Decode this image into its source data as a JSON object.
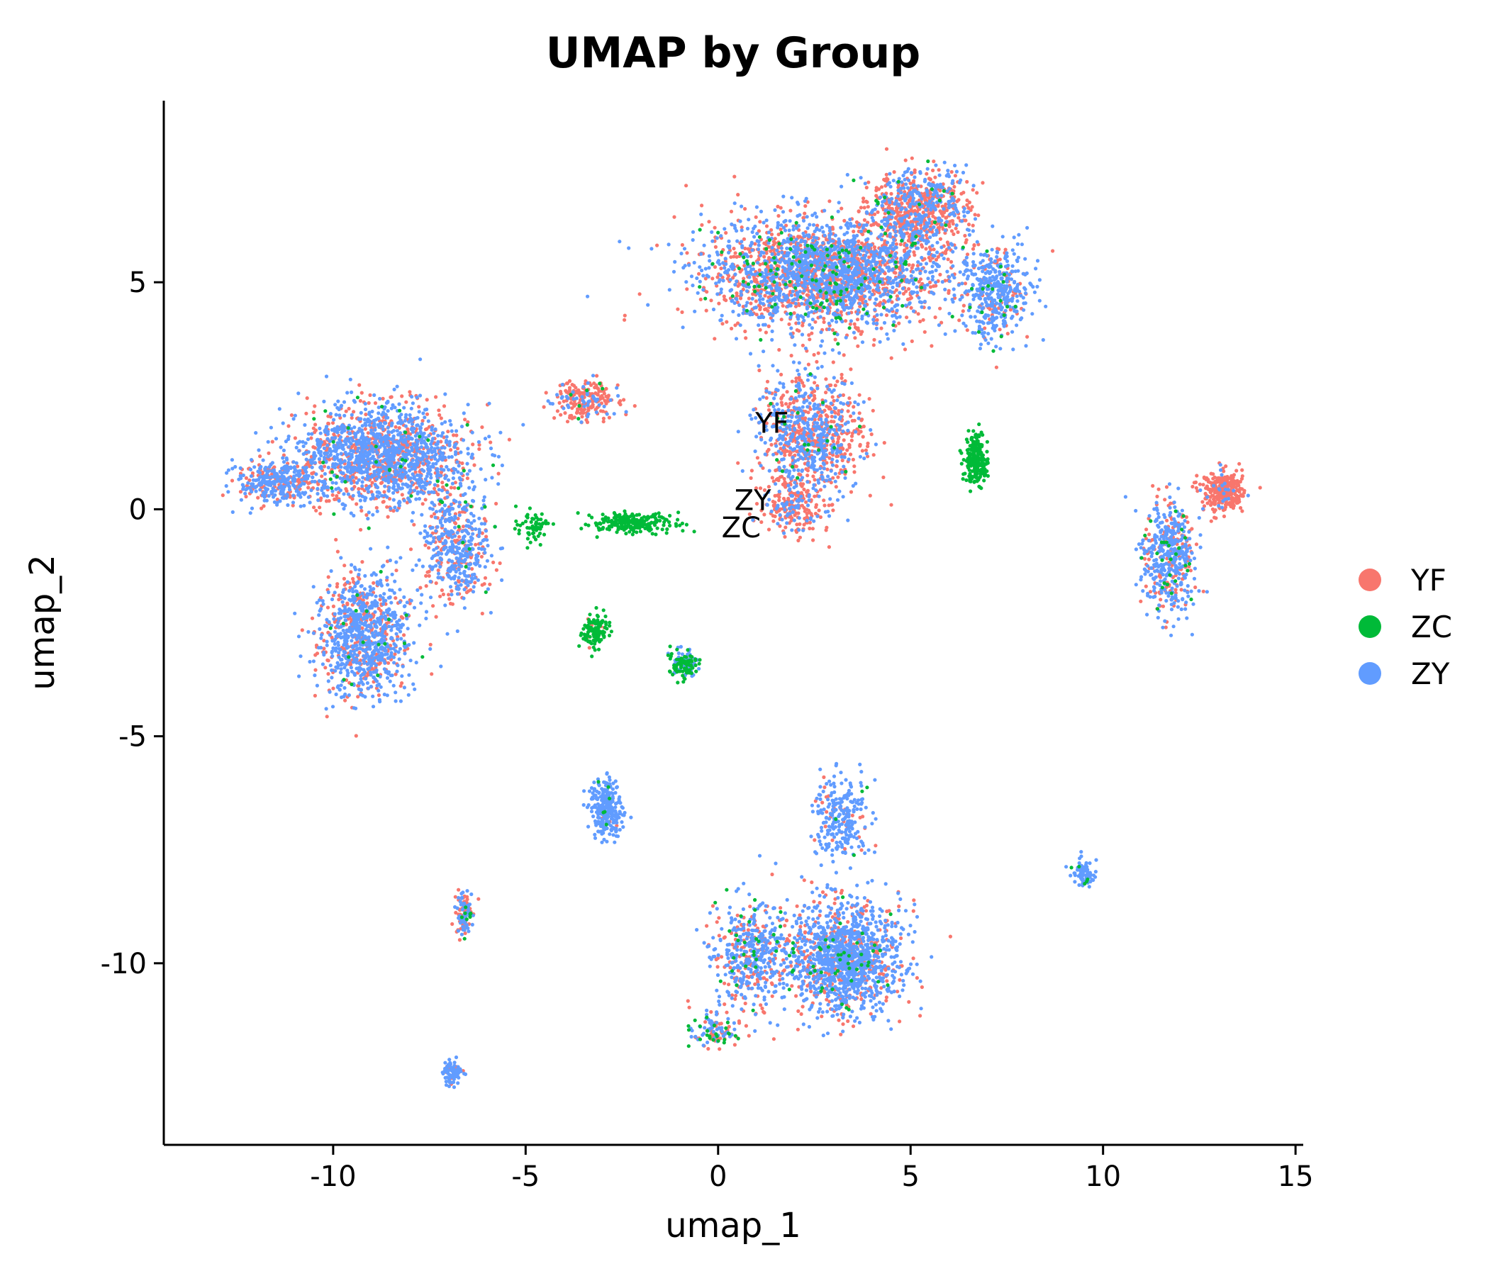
{
  "chart_data": {
    "type": "scatter",
    "title": "UMAP by Group",
    "xlabel": "umap_1",
    "ylabel": "umap_2",
    "xlim": [
      -14.4,
      15.2
    ],
    "ylim": [
      -14.0,
      9.0
    ],
    "xticks": [
      -10,
      -5,
      0,
      5,
      10,
      15
    ],
    "yticks": [
      5,
      0,
      -5,
      -10
    ],
    "xtick_labels": [
      "-10",
      "-5",
      "0",
      "5",
      "10",
      "15"
    ],
    "ytick_labels": [
      "5",
      "0",
      "-5",
      "-10"
    ],
    "grid": false,
    "legend_position": "right",
    "series": [
      {
        "name": "YF",
        "color": "#F8766D"
      },
      {
        "name": "ZC",
        "color": "#00BA38"
      },
      {
        "name": "ZY",
        "color": "#619CFF"
      }
    ],
    "cluster_labels": [
      {
        "text": "YF",
        "x": 1.4,
        "y": 1.9
      },
      {
        "text": "ZY",
        "x": 0.9,
        "y": 0.2
      },
      {
        "text": "ZC",
        "x": 0.6,
        "y": -0.4
      }
    ]
  }
}
